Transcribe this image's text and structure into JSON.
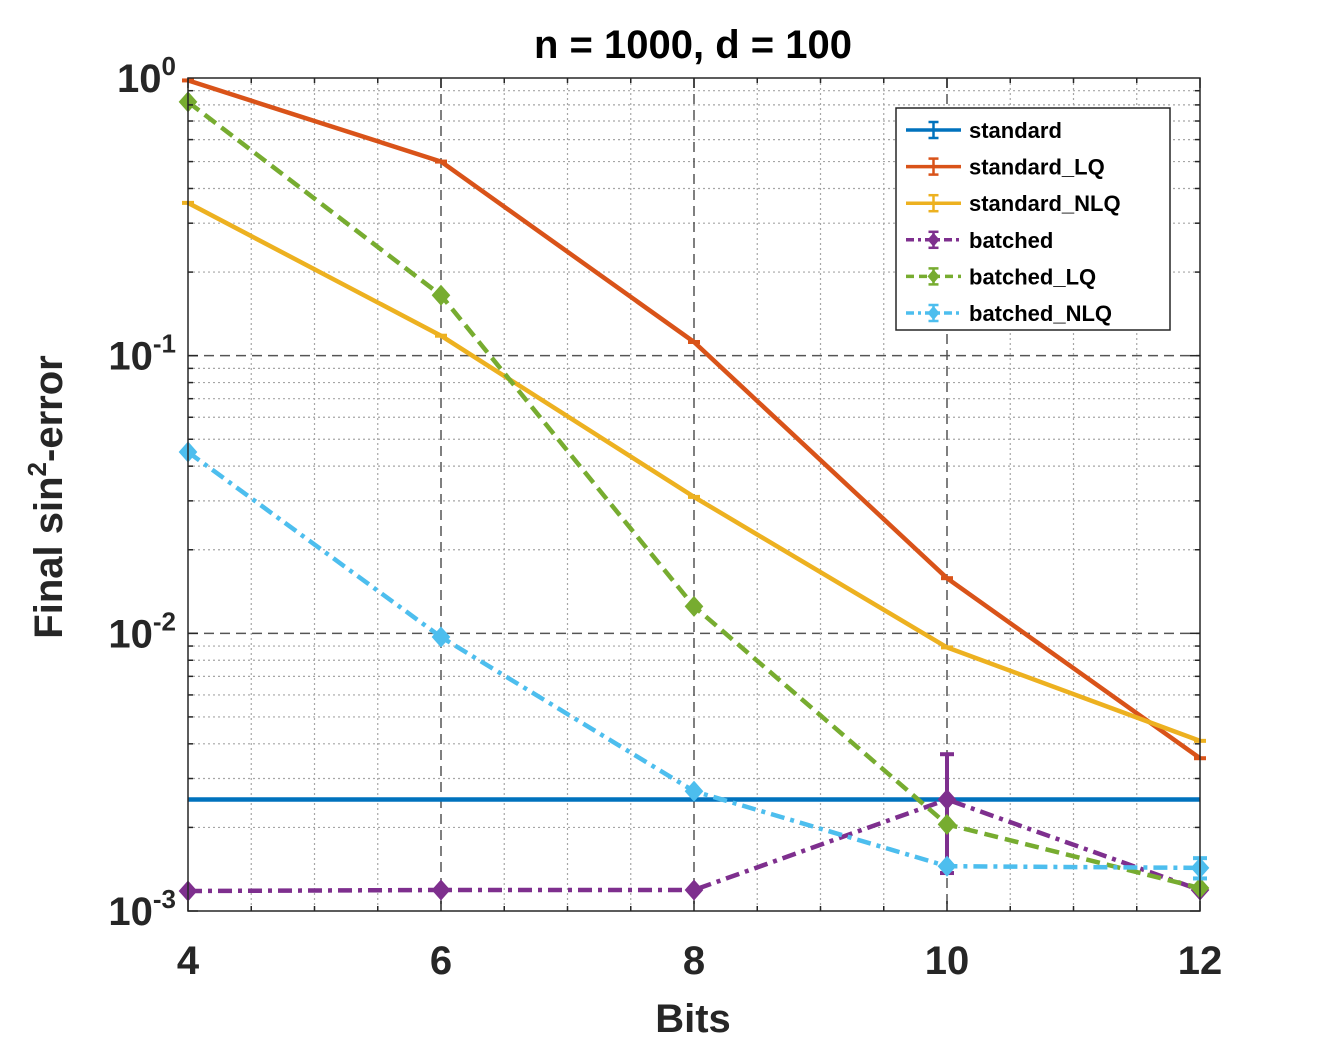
{
  "chart_data": {
    "type": "line",
    "title": "n = 1000, d = 100",
    "xlabel": "Bits",
    "ylabel": {
      "prefix": "Final sin",
      "superscript": "2",
      "suffix": "-error"
    },
    "x": [
      4,
      6,
      8,
      10,
      12
    ],
    "xlim": [
      4,
      12
    ],
    "yscale": "log",
    "ylim": [
      0.001,
      1
    ],
    "xticks": [
      "4",
      "6",
      "8",
      "10",
      "12"
    ],
    "yticks": [
      {
        "base": "10",
        "exp": "0"
      },
      {
        "base": "10",
        "exp": "-1"
      },
      {
        "base": "10",
        "exp": "-2"
      },
      {
        "base": "10",
        "exp": "-3"
      }
    ],
    "grid": true,
    "legend_position": "top-right",
    "series": [
      {
        "name": "standard",
        "color": "#0072BD",
        "style": "solid",
        "marker": "none",
        "values": [
          0.00252,
          0.00252,
          0.00252,
          0.00252,
          0.00252
        ]
      },
      {
        "name": "standard_LQ",
        "color": "#D95319",
        "style": "solid",
        "marker": "tick",
        "values": [
          0.98,
          0.5,
          0.112,
          0.0158,
          0.00355
        ]
      },
      {
        "name": "standard_NLQ",
        "color": "#EDB120",
        "style": "solid",
        "marker": "tick",
        "values": [
          0.355,
          0.118,
          0.031,
          0.0089,
          0.0041
        ]
      },
      {
        "name": "batched",
        "color": "#7E2F8E",
        "style": "dashdot",
        "marker": "diamond",
        "values": [
          0.00118,
          0.00119,
          0.00119,
          0.00252,
          0.00119
        ],
        "errors": [
          0,
          0,
          0,
          0.00115,
          0
        ]
      },
      {
        "name": "batched_LQ",
        "color": "#77AC30",
        "style": "dashed",
        "marker": "diamond",
        "values": [
          0.82,
          0.165,
          0.0125,
          0.00205,
          0.00121
        ]
      },
      {
        "name": "batched_NLQ",
        "color": "#4DBEEE",
        "style": "dashdot",
        "marker": "diamond",
        "values": [
          0.045,
          0.0097,
          0.0027,
          0.00145,
          0.00143
        ],
        "errors": [
          0,
          0,
          0,
          0,
          0.00012
        ]
      }
    ]
  }
}
